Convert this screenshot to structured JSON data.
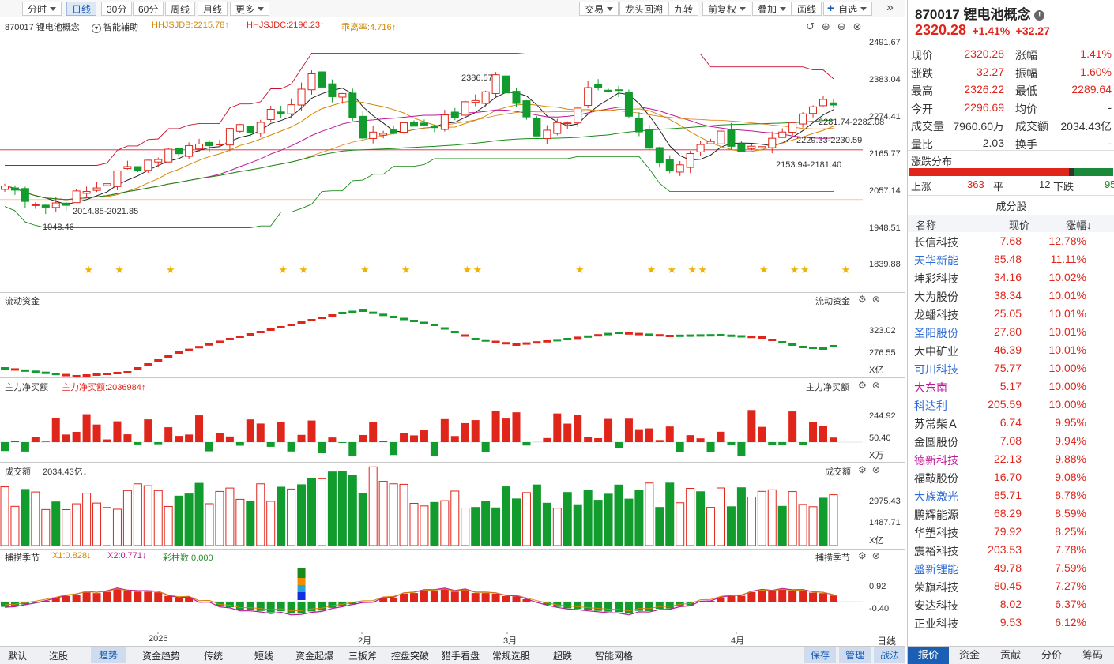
{
  "toolbar": {
    "periods": [
      "分时",
      "日线",
      "30分",
      "60分",
      "周线",
      "月线",
      "更多"
    ],
    "active_period": "日线",
    "actions": [
      "交易",
      "龙头回溯",
      "九转",
      "前复权",
      "叠加",
      "画线",
      "自选"
    ],
    "right_collapse": "»"
  },
  "main_chart": {
    "code_name": "870017 锂电池概念",
    "assist": "智能辅助",
    "ind1": "HHJSJDB:2215.78↑",
    "ind2": "HHJSJDC:2196.23↑",
    "ind3": "乖离率:4.716↑",
    "price_axis": [
      "2491.67",
      "2383.04",
      "2274.41",
      "2165.77",
      "2057.14",
      "1948.51",
      "1839.88"
    ],
    "annotations": {
      "high": "2386.57",
      "low": "1948.46",
      "a1": "2014.85-2021.85",
      "a2": "2281.74-2282.08",
      "a3": "2229.33-2230.59",
      "a4": "2153.94-2181.40"
    }
  },
  "panels": {
    "flow_title": "流动资金",
    "flow_axis": [
      "323.02",
      "276.55"
    ],
    "flow_unit": "X亿",
    "net_title": "主力净买额",
    "net_value": "主力净买额:2036984↑",
    "net_axis": [
      "244.92",
      "50.40"
    ],
    "net_unit": "X万",
    "vol_title": "成交额",
    "vol_value": "2034.43亿↓",
    "vol_axis": [
      "2975.43",
      "1487.71"
    ],
    "vol_unit": "X亿",
    "cap_title": "捕捞季节",
    "cap_x1": "X1:0.828↓",
    "cap_x2": "X2:0.771↓",
    "cap_bars": "彩柱数:0.000",
    "cap_axis": [
      "0.92",
      "-0.40"
    ]
  },
  "x_axis": {
    "labels": [
      "2026",
      "2月",
      "3月",
      "4月"
    ],
    "mode": "日线"
  },
  "bottom_tabs": [
    "默认",
    "选股",
    "趋势",
    "资金趋势",
    "传统",
    "短线",
    "资金起爆",
    "三板斧",
    "控盘突破",
    "猎手看盘",
    "常规选股",
    "超跌",
    "智能网格"
  ],
  "active_tab": "趋势",
  "bottom_right": [
    "保存",
    "管理",
    "战法"
  ],
  "quote": {
    "code": "870017",
    "name": "锂电池概念",
    "price": "2320.28",
    "pct": "+1.41%",
    "chg": "+32.27",
    "rows": [
      [
        "现价",
        "2320.28",
        "涨幅",
        "1.41%"
      ],
      [
        "涨跌",
        "32.27",
        "振幅",
        "1.60%"
      ],
      [
        "最高",
        "2326.22",
        "最低",
        "2289.64"
      ],
      [
        "今开",
        "2296.69",
        "均价",
        "-"
      ],
      [
        "成交量",
        "7960.60万",
        "成交额",
        "2034.43亿"
      ],
      [
        "量比",
        "2.03",
        "换手",
        "-"
      ]
    ],
    "dist_title": "涨跌分布",
    "up_label": "上涨",
    "up_count": "363",
    "flat_label": "平",
    "flat_count": "12",
    "down_label": "下跌",
    "down_count": "95",
    "components_title": "成分股",
    "col_headers": [
      "名称",
      "现价",
      "涨幅↓"
    ],
    "stocks": [
      [
        "长信科技",
        "7.68",
        "12.78%",
        "k"
      ],
      [
        "天华新能",
        "85.48",
        "11.11%",
        "b"
      ],
      [
        "坤彩科技",
        "34.16",
        "10.02%",
        "k"
      ],
      [
        "大为股份",
        "38.34",
        "10.01%",
        "k"
      ],
      [
        "龙蟠科技",
        "25.05",
        "10.01%",
        "k"
      ],
      [
        "圣阳股份",
        "27.80",
        "10.01%",
        "b"
      ],
      [
        "大中矿业",
        "46.39",
        "10.01%",
        "k"
      ],
      [
        "可川科技",
        "75.77",
        "10.00%",
        "b"
      ],
      [
        "大东南",
        "5.17",
        "10.00%",
        "m"
      ],
      [
        "科达利",
        "205.59",
        "10.00%",
        "b"
      ],
      [
        "苏常柴Ａ",
        "6.74",
        "9.95%",
        "k"
      ],
      [
        "金圆股份",
        "7.08",
        "9.94%",
        "k"
      ],
      [
        "德新科技",
        "22.13",
        "9.88%",
        "m"
      ],
      [
        "福鞍股份",
        "16.70",
        "9.08%",
        "k"
      ],
      [
        "大族激光",
        "85.71",
        "8.78%",
        "b"
      ],
      [
        "鹏辉能源",
        "68.29",
        "8.59%",
        "k"
      ],
      [
        "华塑科技",
        "79.92",
        "8.25%",
        "k"
      ],
      [
        "震裕科技",
        "203.53",
        "7.78%",
        "k"
      ],
      [
        "盛新锂能",
        "49.78",
        "7.59%",
        "b"
      ],
      [
        "荣旗科技",
        "80.45",
        "7.27%",
        "k"
      ],
      [
        "安达科技",
        "8.02",
        "6.37%",
        "k"
      ],
      [
        "正业科技",
        "9.53",
        "6.12%",
        "k"
      ]
    ],
    "bottom_tabs": [
      "报价",
      "资金",
      "贡献",
      "分价",
      "筹码"
    ],
    "active_bottom": "报价"
  },
  "colors": {
    "up": "#e0251b",
    "down": "#119c2d",
    "accent": "#1a5fb4"
  }
}
